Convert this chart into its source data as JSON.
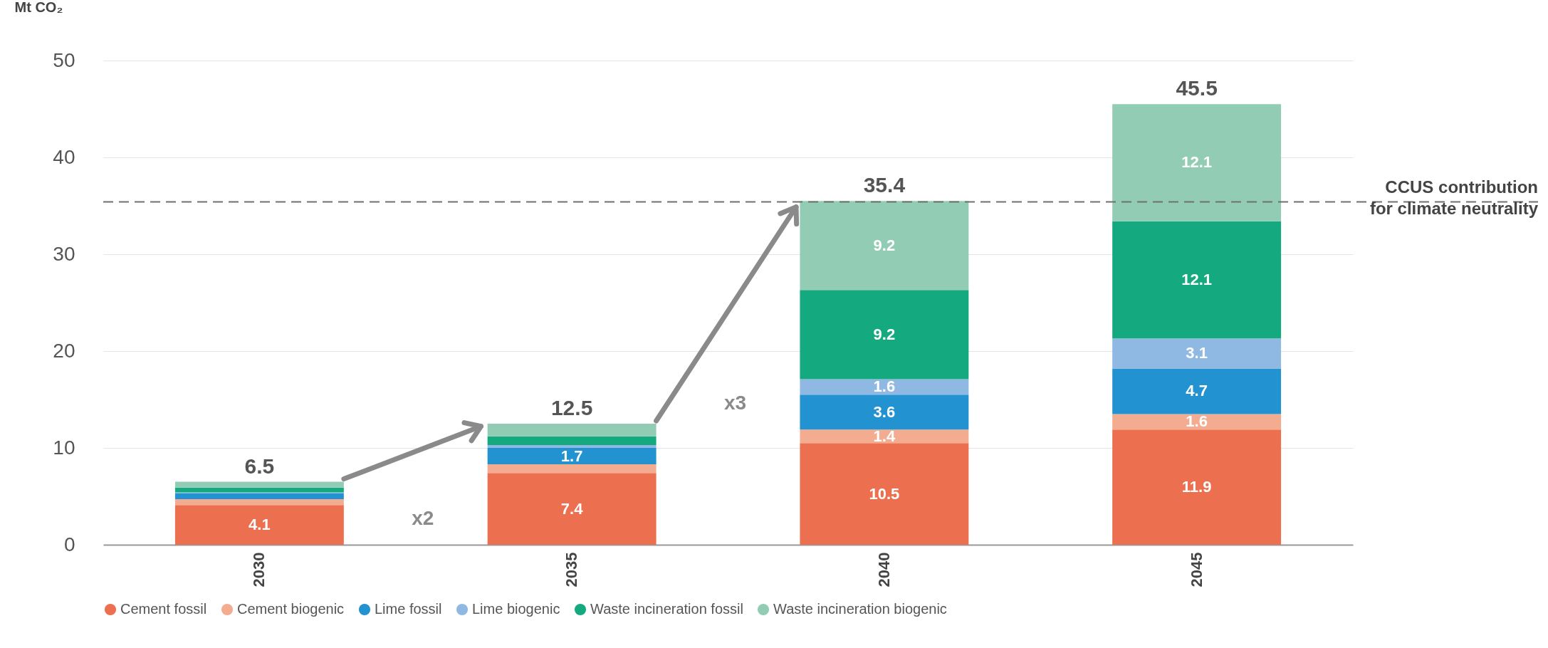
{
  "chart_data": {
    "type": "bar",
    "stacked": true,
    "ylabel": "Mt CO₂",
    "categories": [
      "2030",
      "2035",
      "2040",
      "2045"
    ],
    "series": [
      {
        "name": "Cement fossil",
        "color": "#ec6f50",
        "values": [
          4.1,
          7.4,
          10.5,
          11.9
        ],
        "value_labels": [
          "4.1",
          "7.4",
          "10.5",
          "11.9"
        ]
      },
      {
        "name": "Cement biogenic",
        "color": "#f4ac90",
        "values": [
          0.6,
          0.9,
          1.4,
          1.6
        ],
        "value_labels": [
          null,
          null,
          "1.4",
          "1.6"
        ]
      },
      {
        "name": "Lime fossil",
        "color": "#2292d0",
        "values": [
          0.6,
          1.7,
          3.6,
          4.7
        ],
        "value_labels": [
          null,
          "1.7",
          "3.6",
          "4.7"
        ]
      },
      {
        "name": "Lime biogenic",
        "color": "#8fb8e3",
        "values": [
          0.1,
          0.3,
          1.6,
          3.1
        ],
        "value_labels": [
          null,
          null,
          "1.6",
          "3.1"
        ]
      },
      {
        "name": "Waste incineration fossil",
        "color": "#14a97f",
        "values": [
          0.5,
          0.9,
          9.2,
          12.1
        ],
        "value_labels": [
          null,
          null,
          "9.2",
          "12.1"
        ]
      },
      {
        "name": "Waste incineration biogenic",
        "color": "#93ccb5",
        "values": [
          0.6,
          1.3,
          9.2,
          12.1
        ],
        "value_labels": [
          null,
          null,
          "9.2",
          "12.1"
        ]
      }
    ],
    "totals": [
      "6.5",
      "12.5",
      "35.4",
      "45.5"
    ],
    "ylim": [
      0,
      50
    ],
    "yticks": [
      0,
      10,
      20,
      30,
      40,
      50
    ],
    "grid": "y",
    "legend": "bottom",
    "ref_lines": [
      {
        "axis": "y",
        "value": 35.4,
        "label": "CCUS contribution\nfor climate neutrality",
        "color": "#707070",
        "line_style": "dashed"
      }
    ],
    "annotations": [
      "x2",
      "x3"
    ]
  }
}
